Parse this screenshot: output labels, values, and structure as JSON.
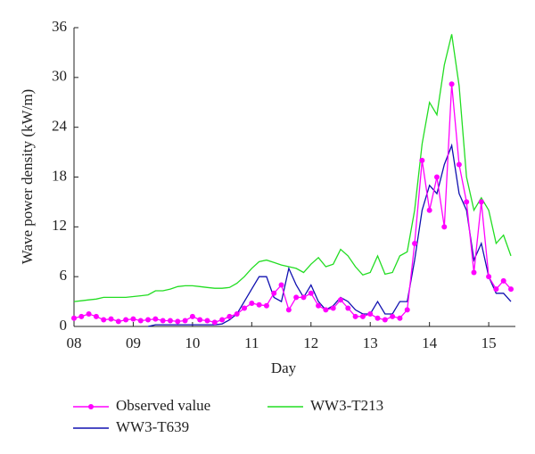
{
  "chart_data": {
    "type": "line",
    "xlabel": "Day",
    "ylabel": "Wave power density (kW/m)",
    "x": [
      8.0,
      8.125,
      8.25,
      8.375,
      8.5,
      8.625,
      8.75,
      8.875,
      9.0,
      9.125,
      9.25,
      9.375,
      9.5,
      9.625,
      9.75,
      9.875,
      10.0,
      10.125,
      10.25,
      10.375,
      10.5,
      10.625,
      10.75,
      10.875,
      11.0,
      11.125,
      11.25,
      11.375,
      11.5,
      11.625,
      11.75,
      11.875,
      12.0,
      12.125,
      12.25,
      12.375,
      12.5,
      12.625,
      12.75,
      12.875,
      13.0,
      13.125,
      13.25,
      13.375,
      13.5,
      13.625,
      13.75,
      13.875,
      14.0,
      14.125,
      14.25,
      14.375,
      14.5,
      14.625,
      14.75,
      14.875,
      15.0,
      15.125,
      15.25,
      15.375
    ],
    "series": [
      {
        "name": "Observed value",
        "color": "#ff00ff",
        "markers": true,
        "values": [
          1.0,
          1.2,
          1.5,
          1.2,
          0.8,
          0.9,
          0.6,
          0.8,
          0.9,
          0.7,
          0.8,
          0.9,
          0.7,
          0.7,
          0.6,
          0.7,
          1.2,
          0.8,
          0.7,
          0.5,
          0.8,
          1.2,
          1.5,
          2.2,
          2.8,
          2.6,
          2.5,
          4.0,
          5.0,
          2.0,
          3.5,
          3.5,
          4.0,
          2.5,
          2.0,
          2.2,
          3.2,
          2.2,
          1.2,
          1.2,
          1.5,
          1.0,
          0.8,
          1.2,
          1.0,
          2.0,
          10.0,
          20.0,
          14.0,
          18.0,
          12.0,
          29.2,
          19.5,
          15.0,
          6.5,
          15.0,
          6.0,
          4.5,
          5.5,
          4.5
        ]
      },
      {
        "name": "WW3-T639",
        "color": "#1010b0",
        "markers": false,
        "values": [
          null,
          null,
          null,
          null,
          null,
          null,
          null,
          null,
          null,
          null,
          0.0,
          0.2,
          0.2,
          0.2,
          0.2,
          0.2,
          0.2,
          0.2,
          0.2,
          0.2,
          0.3,
          0.8,
          1.5,
          3.0,
          4.5,
          6.0,
          6.0,
          3.5,
          3.0,
          7.0,
          5.0,
          3.5,
          5.0,
          3.0,
          2.0,
          2.5,
          3.5,
          3.0,
          2.0,
          1.5,
          1.5,
          3.0,
          1.5,
          1.5,
          3.0,
          3.0,
          8.0,
          14.0,
          17.0,
          16.0,
          19.5,
          21.8,
          16.0,
          14.0,
          8.0,
          10.0,
          6.0,
          4.0,
          4.0,
          3.0
        ]
      },
      {
        "name": "WW3-T213",
        "color": "#22dd22",
        "markers": false,
        "values": [
          3.0,
          3.1,
          3.2,
          3.3,
          3.5,
          3.5,
          3.5,
          3.5,
          3.6,
          3.7,
          3.8,
          4.3,
          4.3,
          4.5,
          4.8,
          4.9,
          4.9,
          4.8,
          4.7,
          4.6,
          4.6,
          4.7,
          5.2,
          6.0,
          7.0,
          7.8,
          8.0,
          7.7,
          7.4,
          7.2,
          7.0,
          6.5,
          7.5,
          8.3,
          7.2,
          7.5,
          9.3,
          8.5,
          7.2,
          6.2,
          6.5,
          8.5,
          6.3,
          6.5,
          8.5,
          9.0,
          14.0,
          22.0,
          27.0,
          25.5,
          31.5,
          35.2,
          29.0,
          18.0,
          14.0,
          15.5,
          14.0,
          10.0,
          11.0,
          8.5
        ]
      }
    ],
    "xlim": [
      8,
      15.45
    ],
    "xticks": [
      {
        "value": 8,
        "label": "08"
      },
      {
        "value": 9,
        "label": "09"
      },
      10,
      11,
      12,
      13,
      14,
      15
    ],
    "ylim": [
      0,
      36
    ],
    "yticks": [
      0,
      6,
      12,
      18,
      24,
      30,
      36
    ],
    "grid": false
  }
}
